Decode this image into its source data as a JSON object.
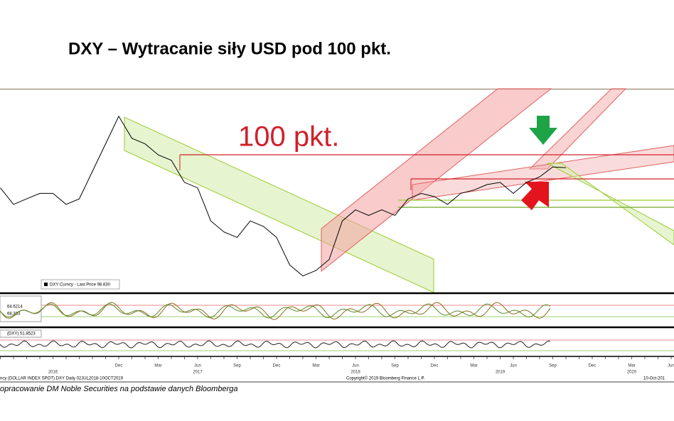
{
  "chart_data": {
    "type": "line",
    "title": "DXY – Wytracanie siły USD pod 100 pkt.",
    "annotation": "100 pkt.",
    "categories": [
      null,
      null,
      null,
      null,
      null,
      null,
      null,
      null,
      null,
      "Dec",
      null,
      null,
      "Mar",
      null,
      null,
      "Jun",
      null,
      null,
      "Sep",
      null,
      null,
      "Dec",
      null,
      null,
      "Mar",
      null,
      null,
      "Jun",
      null,
      null,
      "Sep",
      null,
      null,
      "Dec",
      null,
      null,
      "Mar",
      null,
      null,
      "Jun",
      null,
      null,
      "Sep",
      null,
      null,
      "Dec",
      null,
      null,
      "Mar",
      null,
      null,
      "Jun"
    ],
    "year_labels": [
      null,
      null,
      null,
      null,
      "2016",
      null,
      null,
      null,
      null,
      null,
      null,
      null,
      null,
      null,
      null,
      "2017",
      null,
      null,
      null,
      null,
      null,
      null,
      null,
      null,
      null,
      null,
      null,
      "2018",
      null,
      null,
      null,
      null,
      null,
      null,
      null,
      null,
      null,
      null,
      "2019",
      null,
      null,
      null,
      null,
      null,
      null,
      null,
      null,
      null,
      "2020",
      null,
      null,
      null
    ],
    "series": [
      {
        "name": "DXY Curncy - Last Price 98.830",
        "color": "#000000",
        "values": [
          97,
          95.5,
          96,
          96.5,
          96.5,
          95.5,
          96,
          98.5,
          101,
          103.5,
          101.5,
          101,
          100,
          99.5,
          97.5,
          97,
          94,
          93,
          92.5,
          94,
          93.5,
          92.5,
          90,
          89,
          89.5,
          90.5,
          94,
          95,
          94.5,
          95,
          94.5,
          96,
          96.5,
          96.2,
          95.5,
          96.5,
          96.8,
          97.3,
          97.5,
          96.5,
          97.5,
          98,
          98.9,
          98.83,
          null,
          null,
          null,
          null,
          null,
          null,
          null,
          null
        ]
      }
    ],
    "ylim": [
      87.5,
      106
    ],
    "indicator_labels": [
      "64.6214",
      "68.333",
      "(DXY) 51.8523"
    ],
    "footer_left": "ncy (DOLLAR INDEX SPOT) DXY  Daily 02JUL2018-10OCT2019",
    "footer_center": "Copyright© 2019 Bloomberg Finance L.P.",
    "footer_right": "10-Oct-201",
    "source": "opracowanie DM Noble Securities  na podstawie danych Bloomberga"
  }
}
